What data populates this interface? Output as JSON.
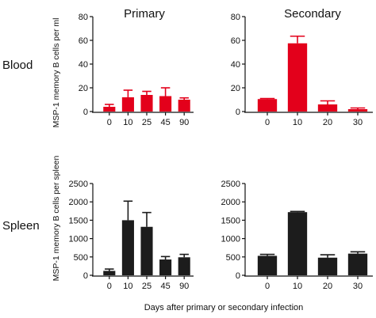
{
  "figure": {
    "column_titles": [
      "Primary",
      "Secondary"
    ],
    "row_labels": [
      "Blood",
      "Spleen"
    ],
    "y_labels": [
      "MSP-1 memory B cells per ml",
      "MSP-1 memory B cells per spleen"
    ],
    "x_label": "Days after primary or secondary infection"
  },
  "colors": {
    "blood": "#e3001b",
    "spleen": "#1c1c1c"
  },
  "chart_data": [
    {
      "type": "bar",
      "panel": "Blood / Primary",
      "categories": [
        "0",
        "10",
        "25",
        "45",
        "90"
      ],
      "values": [
        4,
        12,
        14,
        13,
        10
      ],
      "errors": [
        2,
        6,
        3,
        7,
        1.5
      ],
      "ylim": [
        0,
        80
      ],
      "yticks": [
        0,
        20,
        40,
        60,
        80
      ],
      "color": "blood"
    },
    {
      "type": "bar",
      "panel": "Blood / Secondary",
      "categories": [
        "0",
        "10",
        "20",
        "30"
      ],
      "values": [
        10.5,
        57.5,
        6,
        2
      ],
      "errors": [
        0.5,
        6,
        3,
        1
      ],
      "ylim": [
        0,
        80
      ],
      "yticks": [
        0,
        20,
        40,
        60,
        80
      ],
      "color": "blood"
    },
    {
      "type": "bar",
      "panel": "Spleen / Primary",
      "categories": [
        "0",
        "10",
        "25",
        "45",
        "90"
      ],
      "values": [
        120,
        1500,
        1320,
        430,
        490
      ],
      "errors": [
        50,
        520,
        390,
        80,
        80
      ],
      "ylim": [
        0,
        2500
      ],
      "yticks": [
        0,
        500,
        1000,
        1500,
        2000,
        2500
      ],
      "color": "spleen"
    },
    {
      "type": "bar",
      "panel": "Spleen / Secondary",
      "categories": [
        "0",
        "10",
        "20",
        "30"
      ],
      "values": [
        530,
        1720,
        480,
        590
      ],
      "errors": [
        40,
        20,
        80,
        50
      ],
      "ylim": [
        0,
        2500
      ],
      "yticks": [
        0,
        500,
        1000,
        1500,
        2000,
        2500
      ],
      "color": "spleen"
    }
  ]
}
